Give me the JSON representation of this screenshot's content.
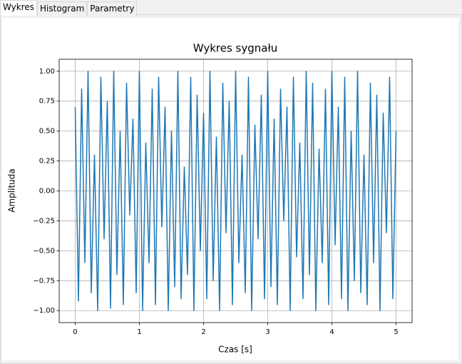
{
  "tabs": [
    "Wykres",
    "Histogram",
    "Parametry"
  ],
  "chart_data": {
    "type": "line",
    "title": "Wykres sygnału",
    "x_label": "Czas [s]",
    "y_label": "Amplituda",
    "color": "#1f77b4",
    "grid": true,
    "xlim": [
      -0.25,
      5.25
    ],
    "ylim": [
      -1.1,
      1.1
    ],
    "xticks": [
      0,
      1,
      2,
      3,
      4,
      5
    ],
    "yticks": [
      {
        "value": -1,
        "label": "−1.00"
      },
      {
        "value": -0.75,
        "label": "−0.75"
      },
      {
        "value": -0.5,
        "label": "−0.50"
      },
      {
        "value": -0.25,
        "label": "−0.25"
      },
      {
        "value": 0,
        "label": "0.00"
      },
      {
        "value": 0.25,
        "label": "0.25"
      },
      {
        "value": 0.5,
        "label": "0.50"
      },
      {
        "value": 0.75,
        "label": "0.75"
      },
      {
        "value": 1,
        "label": "1.00"
      }
    ],
    "x": [
      0,
      0.05,
      0.1,
      0.15,
      0.2,
      0.25,
      0.3,
      0.35,
      0.4,
      0.45,
      0.5,
      0.55,
      0.6,
      0.65,
      0.7,
      0.75,
      0.8,
      0.85,
      0.9,
      0.95,
      1,
      1.05,
      1.1,
      1.15,
      1.2,
      1.25,
      1.3,
      1.35,
      1.4,
      1.45,
      1.5,
      1.55,
      1.6,
      1.65,
      1.7,
      1.75,
      1.8,
      1.85,
      1.9,
      1.95,
      2,
      2.05,
      2.1,
      2.15,
      2.2,
      2.25,
      2.3,
      2.35,
      2.4,
      2.45,
      2.5,
      2.55,
      2.6,
      2.65,
      2.7,
      2.75,
      2.8,
      2.85,
      2.9,
      2.95,
      3,
      3.05,
      3.1,
      3.15,
      3.2,
      3.25,
      3.3,
      3.35,
      3.4,
      3.45,
      3.5,
      3.55,
      3.6,
      3.65,
      3.7,
      3.75,
      3.8,
      3.85,
      3.9,
      3.95,
      4,
      4.05,
      4.1,
      4.15,
      4.2,
      4.25,
      4.3,
      4.35,
      4.4,
      4.45,
      4.5,
      4.55,
      4.6,
      4.65,
      4.7,
      4.75,
      4.8,
      4.85,
      4.9,
      4.95,
      5
    ],
    "values": [
      0.7,
      -0.92,
      0.85,
      -0.6,
      1.0,
      -0.85,
      0.3,
      -1.0,
      0.95,
      -0.4,
      0.75,
      -0.98,
      1.0,
      -0.7,
      0.5,
      -0.95,
      0.9,
      -0.2,
      0.6,
      -0.85,
      1.0,
      -1.0,
      0.4,
      -0.6,
      0.85,
      -0.95,
      0.95,
      -0.3,
      0.7,
      -1.0,
      0.5,
      -0.8,
      1.0,
      -0.9,
      0.2,
      -0.7,
      0.95,
      -1.0,
      0.8,
      -0.5,
      0.65,
      -0.9,
      1.0,
      -0.75,
      0.45,
      -1.0,
      0.9,
      -0.35,
      0.75,
      -0.95,
      1.0,
      -0.6,
      0.3,
      -0.85,
      0.95,
      -1.0,
      0.55,
      -0.4,
      0.8,
      -0.9,
      1.0,
      -0.8,
      0.6,
      -0.95,
      0.85,
      -0.25,
      0.7,
      -1.0,
      0.95,
      -0.55,
      0.4,
      -0.9,
      1.0,
      -0.7,
      0.9,
      -1.0,
      0.35,
      -0.6,
      0.85,
      -0.95,
      1.0,
      -0.45,
      0.7,
      -0.9,
      0.95,
      -1.0,
      0.5,
      -0.75,
      1.0,
      -0.85,
      0.3,
      -0.95,
      0.9,
      -0.6,
      0.8,
      -1.0,
      0.65,
      -0.35,
      0.95,
      -0.9,
      0.5
    ]
  }
}
